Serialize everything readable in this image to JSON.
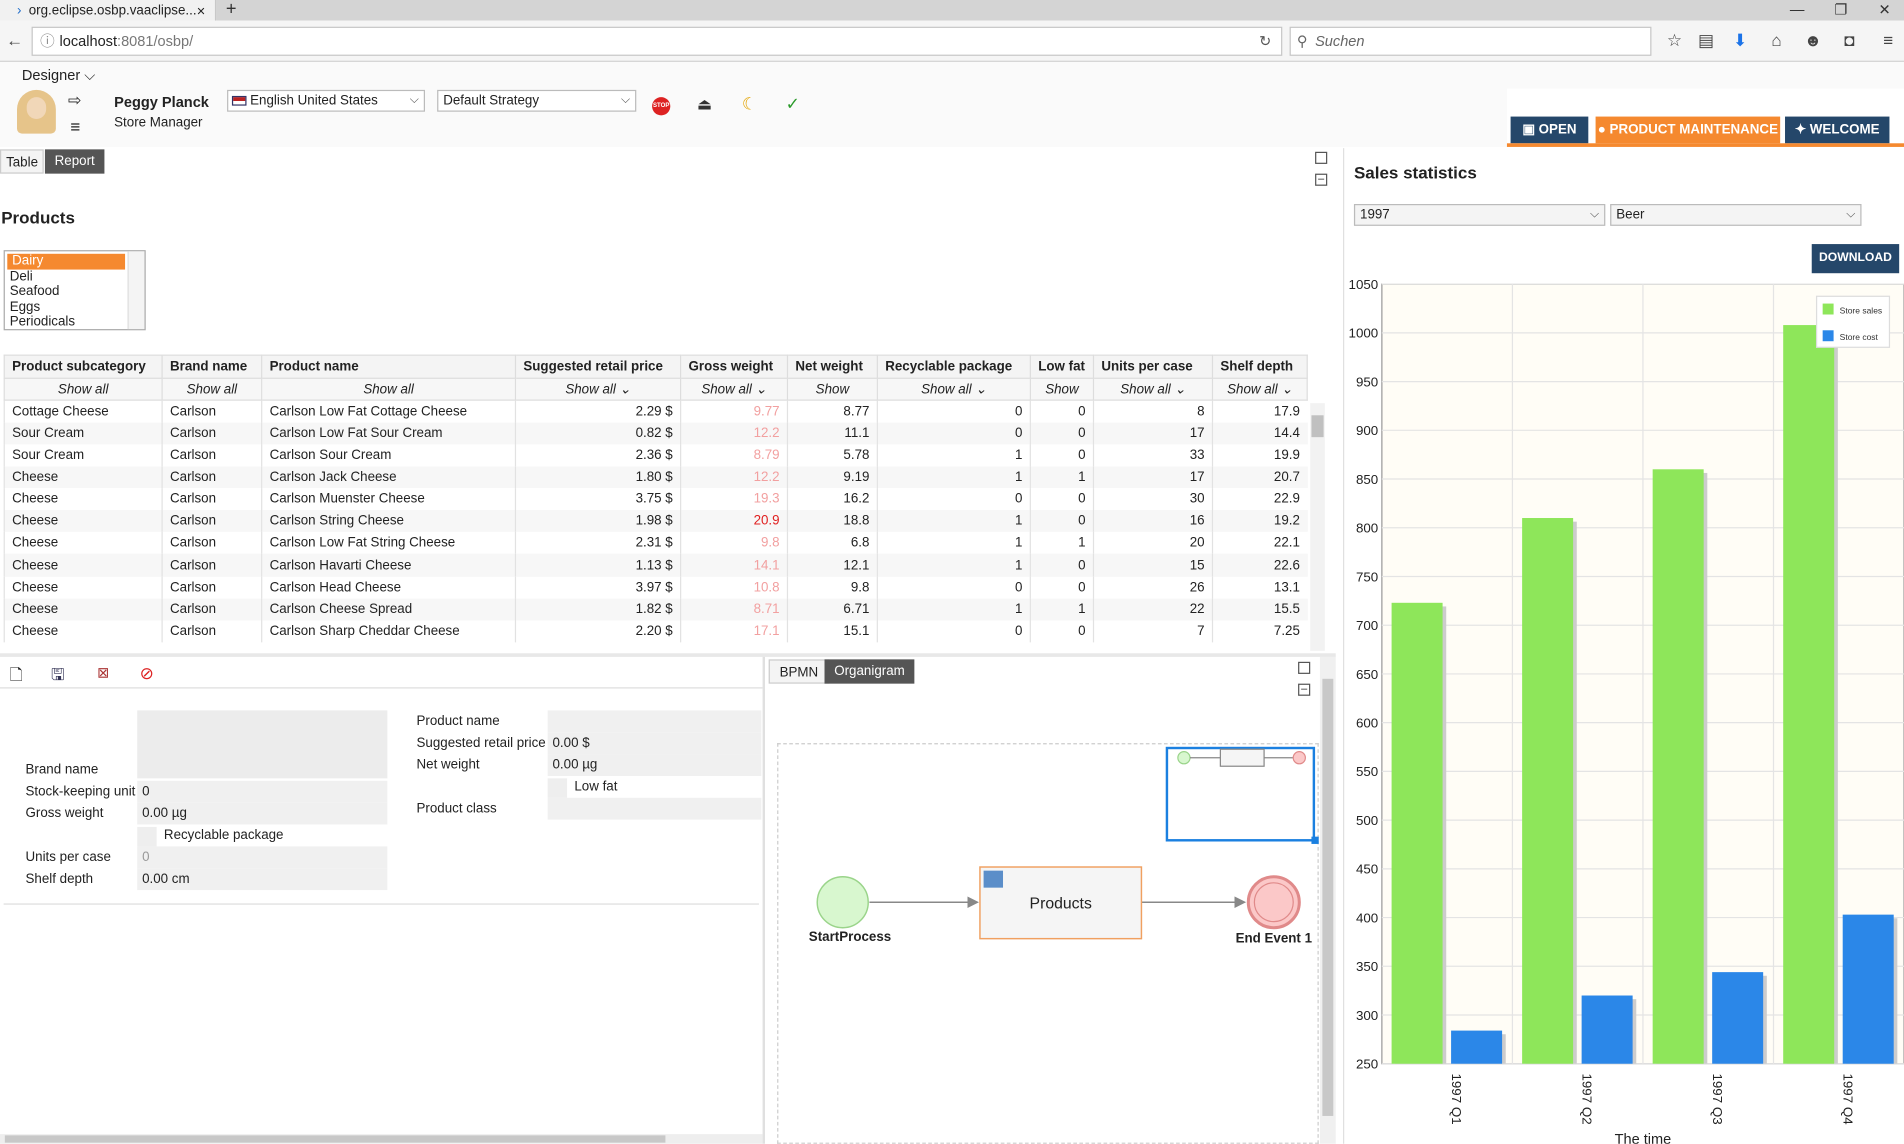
{
  "browser": {
    "tab_title": "org.eclipse.osbp.vaaclipse...",
    "tab_close": "×",
    "new_tab": "+",
    "url_host": "localhost",
    "url_rest": ":8081/osbp/",
    "search_placeholder": "Suchen",
    "win_min": "—",
    "win_max": "❐",
    "win_close": "✕"
  },
  "header": {
    "menu": "Designer ⌵",
    "user_name": "Peggy Planck",
    "user_role": "Store Manager",
    "locale": "English United States",
    "strategy": "Default Strategy",
    "stop_label": "STOP"
  },
  "rtabs": {
    "open": "OPEN",
    "maintenance": "PRODUCT MAINTENANCE",
    "welcome": "WELCOME"
  },
  "colors": {
    "accent": "#f5892f",
    "navy": "#25476a",
    "green": "#8ee65a",
    "blue": "#2b87e8",
    "red": "#e02020"
  },
  "left": {
    "tabs": [
      "Table",
      "Report"
    ],
    "title": "Products",
    "categories": [
      "Dairy",
      "Deli",
      "Seafood",
      "Eggs",
      "Periodicals"
    ],
    "columns": [
      "Product subcategory",
      "Brand name",
      "Product name",
      "Suggested retail price",
      "Gross weight",
      "Net weight",
      "Recyclable package",
      "Low fat",
      "Units per case",
      "Shelf depth"
    ],
    "filters": [
      "Show all",
      "Show all",
      "Show all",
      "Show all ⌄",
      "Show all ⌄",
      "Show",
      "Show all ⌄",
      "Show",
      "Show all ⌄",
      "Show all ⌄"
    ],
    "rows": [
      [
        "Cottage Cheese",
        "Carlson",
        "Carlson Low Fat Cottage Cheese",
        "2.29 $",
        "9.77",
        "8.77",
        "0",
        "0",
        "8",
        "17.9"
      ],
      [
        "Sour Cream",
        "Carlson",
        "Carlson Low Fat Sour Cream",
        "0.82 $",
        "12.2",
        "11.1",
        "0",
        "0",
        "17",
        "14.4"
      ],
      [
        "Sour Cream",
        "Carlson",
        "Carlson Sour Cream",
        "2.36 $",
        "8.79",
        "5.78",
        "1",
        "0",
        "33",
        "19.9"
      ],
      [
        "Cheese",
        "Carlson",
        "Carlson Jack Cheese",
        "1.80 $",
        "12.2",
        "9.19",
        "1",
        "1",
        "17",
        "20.7"
      ],
      [
        "Cheese",
        "Carlson",
        "Carlson Muenster Cheese",
        "3.75 $",
        "19.3",
        "16.2",
        "0",
        "0",
        "30",
        "22.9"
      ],
      [
        "Cheese",
        "Carlson",
        "Carlson String Cheese",
        "1.98 $",
        "20.9",
        "18.8",
        "1",
        "0",
        "16",
        "19.2"
      ],
      [
        "Cheese",
        "Carlson",
        "Carlson Low Fat String Cheese",
        "2.31 $",
        "9.8",
        "6.8",
        "1",
        "1",
        "20",
        "22.1"
      ],
      [
        "Cheese",
        "Carlson",
        "Carlson Havarti Cheese",
        "1.13 $",
        "14.1",
        "12.1",
        "1",
        "0",
        "15",
        "22.6"
      ],
      [
        "Cheese",
        "Carlson",
        "Carlson Head Cheese",
        "3.97 $",
        "10.8",
        "9.8",
        "0",
        "0",
        "26",
        "13.1"
      ],
      [
        "Cheese",
        "Carlson",
        "Carlson Cheese Spread",
        "1.82 $",
        "8.71",
        "6.71",
        "1",
        "1",
        "22",
        "15.5"
      ],
      [
        "Cheese",
        "Carlson",
        "Carlson Sharp Cheddar Cheese",
        "2.20 $",
        "17.1",
        "15.1",
        "0",
        "0",
        "7",
        "7.25"
      ]
    ]
  },
  "form": {
    "brand_label": "Brand name",
    "sku_label": "Stock-keeping unit",
    "sku_value": "0",
    "gross_label": "Gross weight",
    "gross_value": "0.00 µg",
    "recyclable_label": "Recyclable package",
    "units_label": "Units per case",
    "units_value": "0",
    "shelf_label": "Shelf depth",
    "shelf_value": "0.00 cm",
    "pname_label": "Product name",
    "srp_label": "Suggested retail price",
    "srp_value": "0.00 $",
    "net_label": "Net weight",
    "net_value": "0.00 µg",
    "lowfat_label": "Low fat",
    "class_label": "Product class"
  },
  "bpmn": {
    "tabs": [
      "BPMN",
      "Organigram"
    ],
    "start": "StartProcess",
    "task": "Products",
    "end": "End Event 1"
  },
  "chart_panel": {
    "title": "Sales statistics",
    "year": "1997",
    "category": "Beer",
    "download": "DOWNLOAD"
  },
  "chart_data": {
    "type": "bar",
    "categories": [
      "1997 Q1",
      "1997 Q2",
      "1997 Q3",
      "1997 Q4"
    ],
    "series": [
      {
        "name": "Store sales",
        "values": [
          723,
          810,
          860,
          1008
        ]
      },
      {
        "name": "Store cost",
        "values": [
          284,
          320,
          344,
          403
        ]
      }
    ],
    "ylim": [
      250,
      1050
    ],
    "yticks": [
      250,
      300,
      350,
      400,
      450,
      500,
      550,
      600,
      650,
      700,
      750,
      800,
      850,
      900,
      950,
      1000,
      1050
    ],
    "xlabel": "The time",
    "legend": "top-right",
    "grid": true
  }
}
